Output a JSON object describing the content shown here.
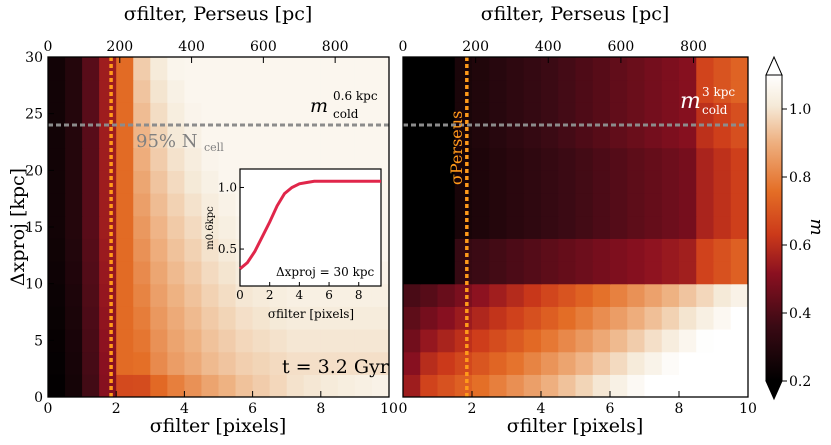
{
  "chart_data": [
    {
      "type": "heatmap",
      "panel": "left",
      "xlabel_bottom": "σfilter [pixels]",
      "xlabel_top": "σfilter, Perseus [pc]",
      "ylabel": "Δxproj [kpc]",
      "xlim": [
        0,
        10
      ],
      "ylim": [
        0,
        30
      ],
      "x_ticks": [
        "0",
        "2",
        "4",
        "6",
        "8",
        "10"
      ],
      "x_top_ticks": [
        "0",
        "200",
        "400",
        "600",
        "800"
      ],
      "y_ticks": [
        "0",
        "5",
        "10",
        "15",
        "20",
        "25",
        "30"
      ],
      "label": "m",
      "label_sup": "0.6 kpc",
      "label_sub": "cold",
      "hline_y": 24,
      "hline_text": "95% N",
      "hline_text_sub": "cell",
      "vline_x": 1.85,
      "time_label": "t = 3.2 Gyr",
      "x_columns": 20,
      "rows": 15,
      "column_profile": [
        0.25,
        0.3,
        0.42,
        0.55,
        0.75,
        0.82,
        0.88,
        0.92,
        0.95,
        0.98,
        1.0,
        1.02,
        1.03,
        1.04,
        1.05,
        1.05,
        1.05,
        1.05,
        1.05,
        1.05
      ]
    },
    {
      "type": "heatmap",
      "panel": "right",
      "xlabel_bottom": "σfilter [pixels]",
      "xlabel_top": "σfilter, Perseus [pc]",
      "xlim": [
        0,
        10
      ],
      "ylim": [
        0,
        30
      ],
      "x_ticks": [
        "0",
        "2",
        "4",
        "6",
        "8",
        "10"
      ],
      "x_top_ticks": [
        "0",
        "200",
        "400",
        "600",
        "800"
      ],
      "label": "m",
      "label_sup": "3 kpc",
      "label_sub": "cold",
      "hline_y": 24,
      "vline_x": 1.85,
      "vline_text": "σPerseus",
      "x_columns": 20,
      "rows": 15
    },
    {
      "type": "line",
      "panel": "inset",
      "xlabel": "σfilter [pixels]",
      "ylabel": "m0.6kpc",
      "annotation": "Δxproj = 30 kpc",
      "xlim": [
        0,
        9.5
      ],
      "ylim": [
        0.2,
        1.15
      ],
      "x_ticks": [
        "0",
        "2",
        "4",
        "6",
        "8"
      ],
      "y_ticks": [
        "0.5",
        "1.0"
      ],
      "x": [
        0,
        0.5,
        1,
        1.5,
        2,
        2.5,
        3,
        3.5,
        4,
        4.5,
        5,
        6,
        7,
        8,
        9.5
      ],
      "y": [
        0.34,
        0.39,
        0.48,
        0.6,
        0.72,
        0.85,
        0.95,
        1.0,
        1.03,
        1.04,
        1.05,
        1.05,
        1.05,
        1.05,
        1.05
      ]
    },
    {
      "type": "colorbar",
      "label": "m",
      "range": [
        0.2,
        1.1
      ],
      "ticks": [
        "0.2",
        "0.4",
        "0.6",
        "0.8",
        "1.0"
      ]
    }
  ]
}
